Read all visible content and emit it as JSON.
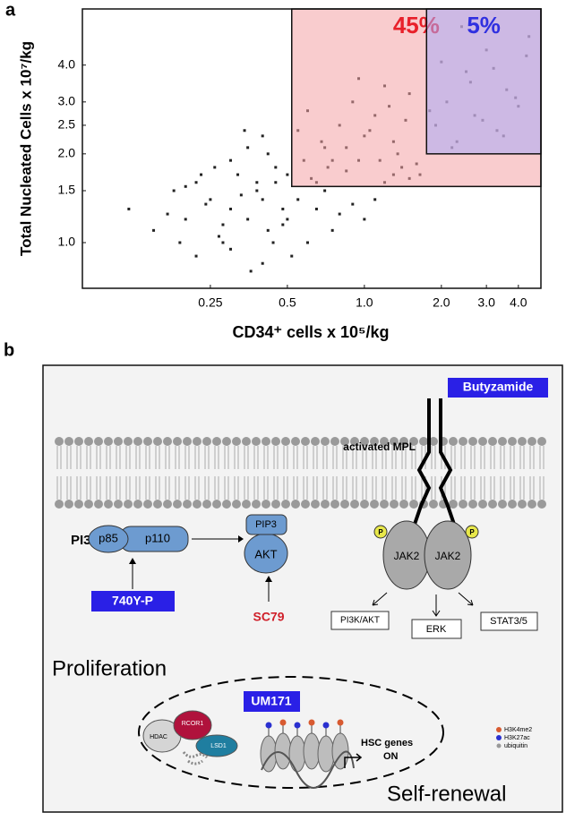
{
  "chart_data": {
    "type": "scatter",
    "panel_label": "a",
    "x_label": "CD34⁺ cells x 10⁵/kg",
    "y_label": "Total Nucleated Cells x 10⁷/kg",
    "log_x": true,
    "log_y": true,
    "color": "#222222",
    "xlim": [
      0.079,
      4.9
    ],
    "ylim": [
      0.7,
      6.2
    ],
    "xticks": [
      0.25,
      0.5,
      {
        "value": 1,
        "label": "1.0"
      },
      {
        "value": 2,
        "label": "2.0"
      },
      {
        "value": 3,
        "label": "3.0"
      },
      {
        "value": 4,
        "label": "4.0"
      }
    ],
    "yticks": [
      {
        "value": 1,
        "label": "1.0"
      },
      1.5,
      {
        "value": 2,
        "label": "2.0"
      },
      2.5,
      {
        "value": 3,
        "label": "3.0"
      },
      {
        "value": 4,
        "label": "4.0"
      }
    ],
    "regions": [
      {
        "label": "45%",
        "x0": 0.52,
        "y0": 1.55,
        "color": "#f4a3a6",
        "label_color": "#e8202a"
      },
      {
        "label": "5%",
        "x0": 1.75,
        "y0": 2.0,
        "color": "#a9aaf5",
        "label_color": "#3030e0"
      }
    ],
    "x": [
      0.12,
      0.15,
      0.18,
      0.2,
      0.22,
      0.25,
      0.28,
      0.3,
      0.32,
      0.35,
      0.38,
      0.4,
      0.42,
      0.45,
      0.48,
      0.3,
      0.26,
      0.22,
      0.35,
      0.4,
      0.5,
      0.55,
      0.6,
      0.65,
      0.7,
      0.75,
      0.8,
      0.9,
      1.0,
      1.1,
      0.45,
      0.38,
      0.33,
      0.28,
      0.24,
      0.2,
      0.17,
      0.42,
      0.5,
      0.58,
      0.62,
      0.68,
      0.72,
      0.85,
      0.95,
      1.2,
      1.3,
      1.4,
      1.5,
      1.6,
      0.55,
      0.6,
      0.7,
      0.8,
      0.9,
      1.0,
      1.1,
      1.2,
      1.3,
      1.45,
      0.65,
      0.75,
      0.85,
      0.95,
      1.05,
      1.15,
      1.25,
      1.35,
      1.5,
      1.65,
      1.9,
      2.1,
      2.3,
      2.5,
      2.7,
      3.0,
      3.3,
      3.6,
      4.0,
      4.4,
      2.0,
      2.2,
      2.6,
      2.9,
      3.2,
      3.5,
      3.9,
      4.3,
      1.8,
      2.4,
      0.3,
      0.36,
      0.44,
      0.27,
      0.19,
      0.52,
      0.48,
      0.4,
      0.34,
      0.23
    ],
    "values": [
      1.3,
      1.1,
      1.5,
      1.2,
      1.6,
      1.4,
      1.0,
      1.3,
      1.7,
      1.2,
      1.5,
      1.4,
      1.1,
      1.6,
      1.3,
      1.9,
      1.8,
      0.9,
      2.1,
      0.85,
      1.2,
      1.4,
      1.0,
      1.3,
      1.5,
      1.1,
      1.25,
      1.35,
      1.2,
      1.4,
      1.8,
      1.6,
      1.45,
      1.15,
      1.35,
      1.55,
      1.25,
      2.0,
      1.7,
      1.9,
      1.65,
      2.2,
      1.8,
      1.75,
      1.9,
      1.6,
      1.7,
      1.8,
      1.65,
      1.85,
      2.4,
      2.8,
      2.1,
      2.5,
      3.0,
      2.3,
      2.7,
      3.4,
      2.2,
      2.6,
      1.6,
      1.9,
      2.1,
      3.6,
      2.4,
      1.9,
      2.9,
      2.0,
      3.2,
      1.7,
      2.5,
      3.0,
      2.2,
      3.8,
      2.7,
      4.5,
      2.4,
      3.3,
      2.9,
      5.0,
      4.1,
      2.1,
      3.5,
      2.6,
      3.9,
      2.3,
      3.1,
      4.3,
      2.8,
      5.4,
      0.95,
      0.8,
      1.0,
      1.05,
      1.0,
      0.9,
      1.15,
      2.3,
      2.4,
      1.7
    ]
  },
  "diagram": {
    "label": "b",
    "drug_top": "Butyzamide",
    "receptor": "activated MPL",
    "pi3k": "PI3K",
    "p85": "p85",
    "p110": "p110",
    "pip3": "PIP3",
    "akt": "AKT",
    "jak2": [
      "JAK2",
      "JAK2"
    ],
    "phospho": [
      "P",
      "P"
    ],
    "drug_pi3k": "740Y-P",
    "drug_akt": "SC79",
    "outputs": [
      "PI3K/AKT",
      "ERK",
      "STAT3/5"
    ],
    "proliferation": "Proliferation",
    "drug_nucleus": "UM171",
    "complex": [
      "HDAC",
      "RCOR1",
      "LSD1"
    ],
    "genes": "HSC genes",
    "on": "ON",
    "legend": [
      "H3K4me2",
      "H3K27ac",
      "ubiquitin"
    ],
    "self_renewal": "Self-renewal"
  }
}
